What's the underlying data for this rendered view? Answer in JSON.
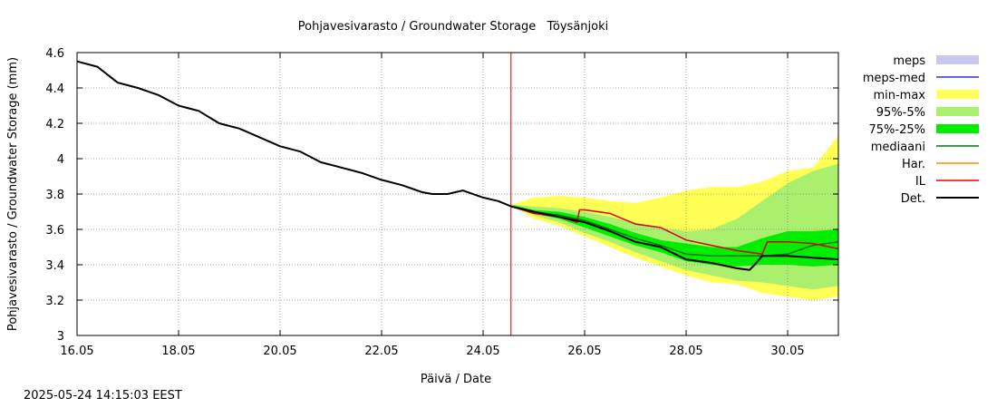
{
  "timestamp": "2025-05-24 14:15:03 EEST",
  "colors": {
    "meps": "#c8c8f0",
    "meps_med": "#3333cc",
    "min_max": "#ffff55",
    "p95_5": "#aaf06e",
    "p75_25": "#00ee00",
    "mediaani": "#007700",
    "har": "#ff8800",
    "il": "#dd0000",
    "det": "#000000",
    "marker": "#cc0000"
  },
  "chart_data": {
    "type": "line",
    "title": "Pohjavesivarasto / Groundwater Storage   Töysänjoki",
    "xlabel": "Päivä / Date",
    "ylabel": "Pohjavesivarasto / Groundwater Storage (mm)",
    "xlim": [
      16.0,
      31.0
    ],
    "ylim": [
      3.0,
      4.6
    ],
    "x_unit": "day of May 2025",
    "xticks": [
      16,
      18,
      20,
      22,
      24,
      26,
      28,
      30
    ],
    "xtick_labels": [
      "16.05",
      "18.05",
      "20.05",
      "22.05",
      "24.05",
      "26.05",
      "28.05",
      "30.05"
    ],
    "yticks": [
      3.0,
      3.2,
      3.4,
      3.6,
      3.8,
      4.0,
      4.2,
      4.4,
      4.6
    ],
    "ytick_labels": [
      "3",
      "3.2",
      "3.4",
      "3.6",
      "3.8",
      "4",
      "4.2",
      "4.4",
      "4.6"
    ],
    "grid": true,
    "legend_position": "right",
    "current_time_marker": 24.55,
    "legend": [
      {
        "key": "meps",
        "label": "meps",
        "style": "fill"
      },
      {
        "key": "meps_med",
        "label": "meps-med",
        "style": "line"
      },
      {
        "key": "min_max",
        "label": "min-max",
        "style": "fill"
      },
      {
        "key": "p95_5",
        "label": "95%-5%",
        "style": "fill"
      },
      {
        "key": "p75_25",
        "label": "75%-25%",
        "style": "fill"
      },
      {
        "key": "mediaani",
        "label": "mediaani",
        "style": "line"
      },
      {
        "key": "har",
        "label": "Har.",
        "style": "line"
      },
      {
        "key": "il",
        "label": "IL",
        "style": "line"
      },
      {
        "key": "det",
        "label": "Det.",
        "style": "thickline"
      }
    ],
    "bands": {
      "min_max": {
        "x": [
          24.55,
          25.0,
          25.5,
          26.0,
          26.5,
          27.0,
          27.5,
          28.0,
          28.5,
          29.0,
          29.5,
          30.0,
          30.5,
          31.0
        ],
        "lower": [
          3.74,
          3.66,
          3.62,
          3.56,
          3.5,
          3.44,
          3.39,
          3.34,
          3.3,
          3.29,
          3.24,
          3.22,
          3.2,
          3.22
        ],
        "upper": [
          3.74,
          3.78,
          3.79,
          3.78,
          3.76,
          3.75,
          3.78,
          3.82,
          3.84,
          3.84,
          3.87,
          3.93,
          3.95,
          4.13
        ]
      },
      "p95_5": {
        "x": [
          24.55,
          25.0,
          25.5,
          26.0,
          26.5,
          27.0,
          27.5,
          28.0,
          28.5,
          29.0,
          29.5,
          30.0,
          30.5,
          31.0
        ],
        "lower": [
          3.74,
          3.68,
          3.64,
          3.58,
          3.53,
          3.47,
          3.42,
          3.37,
          3.34,
          3.31,
          3.3,
          3.28,
          3.26,
          3.28
        ],
        "upper": [
          3.74,
          3.73,
          3.72,
          3.7,
          3.67,
          3.64,
          3.61,
          3.59,
          3.6,
          3.66,
          3.76,
          3.86,
          3.93,
          3.97
        ]
      },
      "p75_25": {
        "x": [
          24.55,
          25.0,
          25.5,
          26.0,
          26.5,
          27.0,
          27.5,
          28.0,
          28.5,
          29.0,
          29.5,
          30.0,
          30.5,
          31.0
        ],
        "lower": [
          3.74,
          3.69,
          3.66,
          3.61,
          3.56,
          3.51,
          3.47,
          3.42,
          3.4,
          3.39,
          3.4,
          3.4,
          3.39,
          3.4
        ],
        "upper": [
          3.74,
          3.71,
          3.7,
          3.67,
          3.63,
          3.58,
          3.54,
          3.52,
          3.5,
          3.5,
          3.55,
          3.59,
          3.59,
          3.6
        ]
      }
    },
    "series": [
      {
        "key": "det",
        "name": "Det.",
        "width": 2,
        "x": [
          16.0,
          16.4,
          16.8,
          17.2,
          17.6,
          18.0,
          18.4,
          18.8,
          19.2,
          19.6,
          20.0,
          20.4,
          20.8,
          21.2,
          21.6,
          22.0,
          22.4,
          22.8,
          23.0,
          23.3,
          23.6,
          24.0,
          24.3,
          24.55,
          25.0,
          25.5,
          26.0,
          26.5,
          27.0,
          27.5,
          28.0,
          28.5,
          29.0,
          29.25,
          29.35,
          29.5,
          30.0,
          30.5,
          31.0
        ],
        "y": [
          4.55,
          4.52,
          4.43,
          4.4,
          4.36,
          4.3,
          4.27,
          4.2,
          4.17,
          4.12,
          4.07,
          4.04,
          3.98,
          3.95,
          3.92,
          3.88,
          3.85,
          3.81,
          3.8,
          3.8,
          3.82,
          3.78,
          3.76,
          3.73,
          3.7,
          3.67,
          3.64,
          3.59,
          3.53,
          3.5,
          3.43,
          3.41,
          3.38,
          3.37,
          3.4,
          3.45,
          3.45,
          3.44,
          3.43
        ]
      },
      {
        "key": "mediaani",
        "name": "mediaani",
        "width": 1.5,
        "x": [
          24.55,
          25.0,
          25.5,
          26.0,
          26.5,
          27.0,
          27.5,
          28.0,
          28.5,
          29.0,
          29.5,
          30.0,
          30.5,
          31.0
        ],
        "y": [
          3.73,
          3.7,
          3.68,
          3.65,
          3.6,
          3.55,
          3.51,
          3.46,
          3.45,
          3.45,
          3.45,
          3.46,
          3.51,
          3.53
        ]
      },
      {
        "key": "il",
        "name": "IL",
        "width": 1.5,
        "x": [
          24.55,
          25.0,
          25.5,
          25.85,
          25.9,
          26.0,
          26.5,
          27.0,
          27.5,
          28.0,
          28.5,
          29.0,
          29.5,
          29.6,
          30.0,
          30.5,
          31.0
        ],
        "y": [
          3.73,
          3.69,
          3.67,
          3.64,
          3.71,
          3.71,
          3.69,
          3.63,
          3.61,
          3.54,
          3.51,
          3.48,
          3.46,
          3.53,
          3.53,
          3.52,
          3.49
        ]
      }
    ]
  }
}
